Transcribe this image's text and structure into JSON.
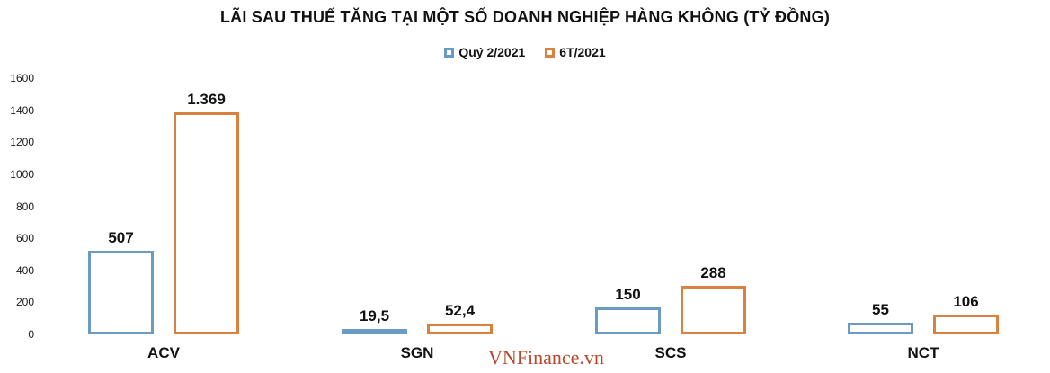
{
  "title": "LÃI SAU THUẾ TĂNG TẠI MỘT SỐ DOANH NGHIỆP HÀNG KHÔNG (TỶ ĐỒNG)",
  "watermark": "VNFinance.vn",
  "colors": {
    "series_q2": "#699bc3",
    "series_6t": "#d9823f",
    "text": "#111111",
    "watermark": "#b34a2e",
    "background": "#ffffff"
  },
  "chart_data": {
    "type": "bar",
    "title": "LÃI SAU THUẾ TĂNG TẠI MỘT SỐ DOANH NGHIỆP HÀNG KHÔNG (TỶ ĐỒNG)",
    "categories": [
      "ACV",
      "SGN",
      "SCS",
      "NCT"
    ],
    "series": [
      {
        "name": "Quý 2/2021",
        "color": "#699bc3",
        "values": [
          507,
          19.5,
          150,
          55
        ],
        "labels": [
          "507",
          "19,5",
          "150",
          "55"
        ]
      },
      {
        "name": "6T/2021",
        "color": "#d9823f",
        "values": [
          1369,
          52.4,
          288,
          106
        ],
        "labels": [
          "1.369",
          "52,4",
          "288",
          "106"
        ]
      }
    ],
    "xlabel": "",
    "ylabel": "",
    "ylim": [
      0,
      1600
    ],
    "yticks": [
      0,
      200,
      400,
      600,
      800,
      1000,
      1200,
      1400,
      1600
    ],
    "grid": false,
    "legend_position": "top",
    "bar_style": "outlined-white-fill"
  }
}
